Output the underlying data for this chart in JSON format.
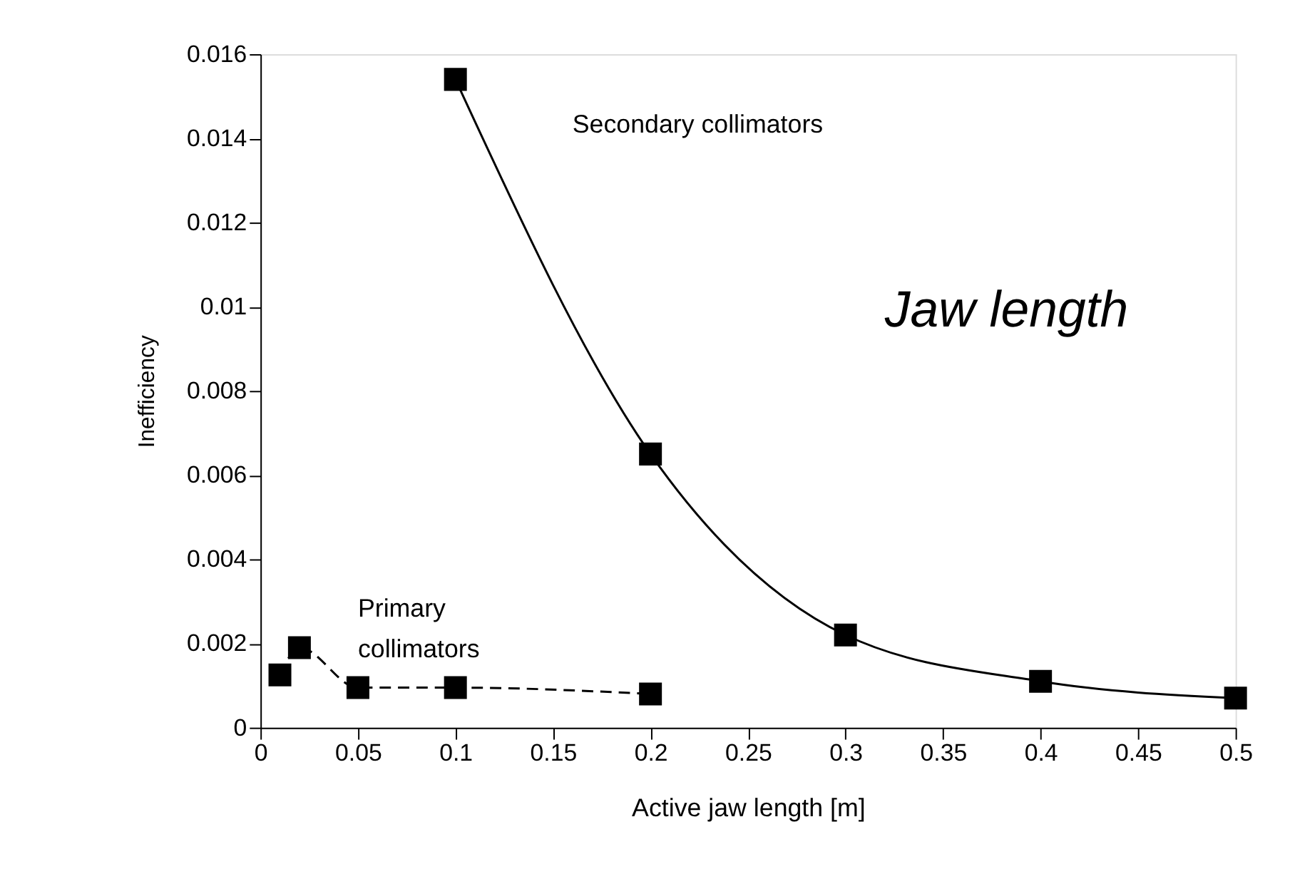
{
  "chart_data": {
    "type": "line",
    "xlabel": "Active jaw length [m]",
    "ylabel": "Inefficiency",
    "annotations": [
      "Secondary collimators",
      "Primary\ncollimators",
      "Jaw length"
    ],
    "series": [
      {
        "color": "#000000",
        "line_style": "solid",
        "marker": "square",
        "x": [
          0.1,
          0.2,
          0.3,
          0.4,
          0.5
        ],
        "values": [
          0.0154,
          0.0065,
          0.0022,
          0.0011,
          0.0007
        ]
      },
      {
        "color": "#000000",
        "line_style": "dashed",
        "marker": "square",
        "x": [
          0.01,
          0.02,
          0.05,
          0.1,
          0.2
        ],
        "values": [
          0.00125,
          0.0019,
          0.00095,
          0.00095,
          0.0008
        ]
      }
    ],
    "xlim": [
      0,
      0.5
    ],
    "xticks": [
      0,
      0.05,
      0.1,
      0.15,
      0.2,
      0.25,
      0.3,
      0.35,
      0.4,
      0.45,
      0.5
    ],
    "ylim": [
      0,
      0.016
    ],
    "yticks": [
      0,
      0.002,
      0.004,
      0.006,
      0.008,
      0.01,
      0.012,
      0.014,
      0.016
    ],
    "grid": false
  }
}
